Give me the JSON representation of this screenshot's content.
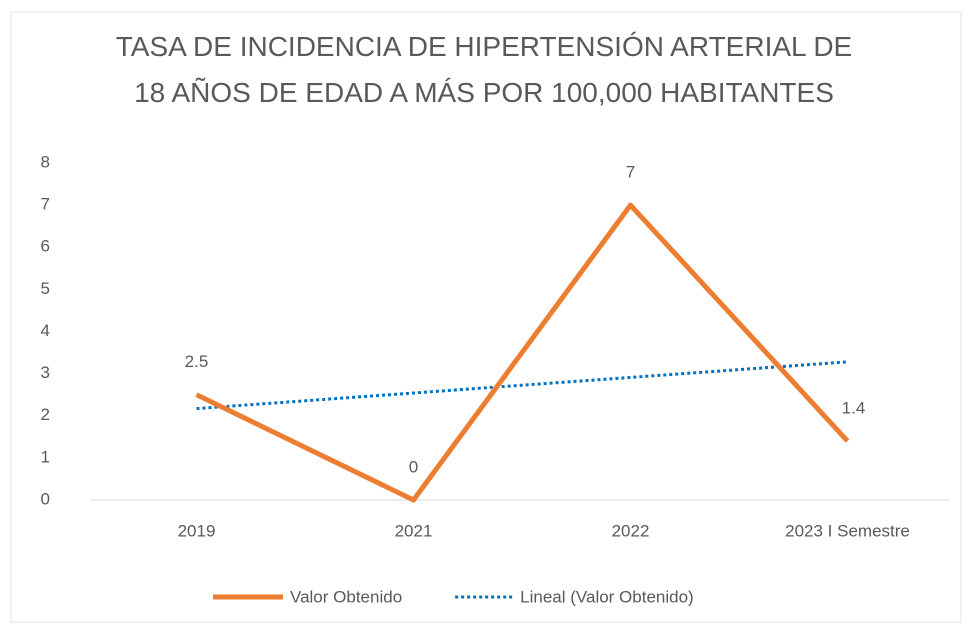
{
  "chart_data": {
    "type": "line",
    "title": "TASA DE INCIDENCIA DE HIPERTENSIÓN ARTERIAL DE 18 AÑOS DE EDAD A MÁS POR 100,000 HABITANTES",
    "categories": [
      "2019",
      "2021",
      "2022",
      "2023 I Semestre"
    ],
    "series": [
      {
        "name": "Valor Obtenido",
        "color": "#ed7d31",
        "values": [
          2.5,
          0,
          7,
          1.4
        ],
        "data_labels": true
      },
      {
        "name": "Lineal (Valor Obtenido)",
        "color": "#0070c0",
        "values": [
          2.17,
          2.54,
          2.91,
          3.28
        ],
        "dash": "dotted"
      }
    ],
    "ylim": [
      0,
      8
    ],
    "yticks": [
      0,
      1,
      2,
      3,
      4,
      5,
      6,
      7,
      8
    ],
    "grid": false,
    "legend": "bottom"
  }
}
